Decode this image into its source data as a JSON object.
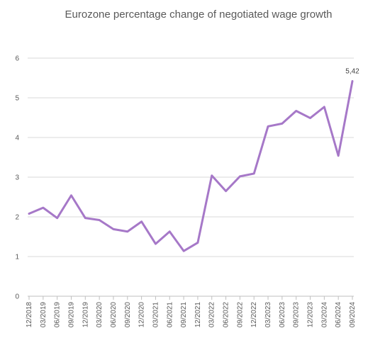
{
  "chart_data": {
    "type": "line",
    "title": "Eurozone percentage change of negotiated wage growth",
    "xlabel": "",
    "ylabel": "",
    "ylim": [
      0,
      6
    ],
    "yticks": [
      "0",
      "1",
      "2",
      "3",
      "4",
      "5",
      "6"
    ],
    "grid": true,
    "legend": "none",
    "color": "#a678c8",
    "categories": [
      "12/2018",
      "03/2019",
      "06/2019",
      "09/2019",
      "12/2019",
      "03/2020",
      "06/2020",
      "09/2020",
      "12/2020",
      "03/2021",
      "06/2021",
      "09/2021",
      "12/2021",
      "03/2022",
      "06/2022",
      "09/2022",
      "12/2022",
      "03/2023",
      "06/2023",
      "09/2023",
      "12/2023",
      "03/2024",
      "06/2024",
      "09/2024"
    ],
    "series": [
      {
        "values": [
          2.08,
          2.23,
          1.97,
          2.54,
          1.97,
          1.92,
          1.69,
          1.63,
          1.88,
          1.32,
          1.63,
          1.14,
          1.35,
          3.04,
          2.65,
          3.02,
          3.09,
          4.28,
          4.35,
          4.67,
          4.49,
          4.77,
          3.54,
          5.42
        ]
      }
    ],
    "data_labels": [
      {
        "index": 23,
        "text": "5,42"
      }
    ]
  }
}
